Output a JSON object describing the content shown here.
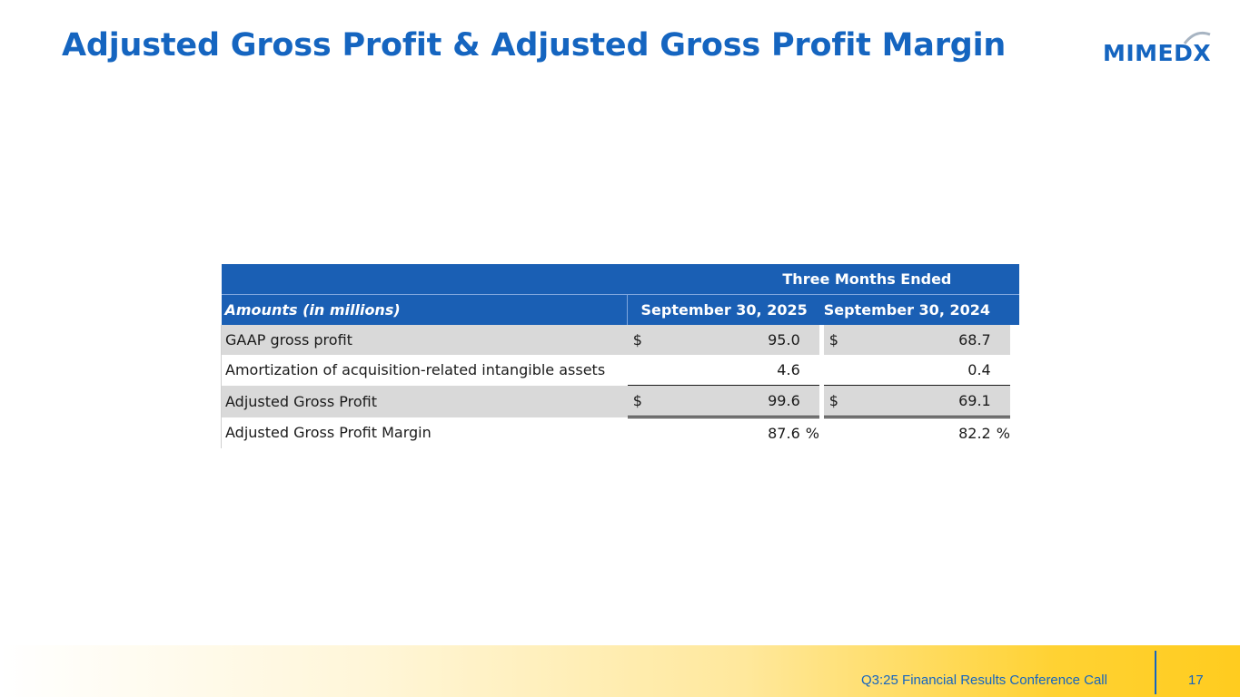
{
  "title": "Adjusted Gross Profit & Adjusted Gross Profit Margin",
  "logo": {
    "text": "MIMEDX"
  },
  "table": {
    "super_header": "Three Months Ended",
    "label_header": "Amounts (in millions)",
    "col_headers": [
      "September 30, 2025",
      "September 30, 2024"
    ],
    "rows": [
      {
        "label": "GAAP gross profit",
        "c1": "$",
        "v1": "95.0",
        "s1": "",
        "c2": "$",
        "v2": "68.7",
        "s2": ""
      },
      {
        "label": "Amortization of acquisition-related intangible assets",
        "c1": "",
        "v1": "4.6",
        "s1": "",
        "c2": "",
        "v2": "0.4",
        "s2": ""
      },
      {
        "label": "Adjusted Gross Profit",
        "c1": "$",
        "v1": "99.6",
        "s1": "",
        "c2": "$",
        "v2": "69.1",
        "s2": ""
      },
      {
        "label": "Adjusted Gross Profit Margin",
        "c1": "",
        "v1": "87.6",
        "s1": "%",
        "c2": "",
        "v2": "82.2",
        "s2": "%"
      }
    ]
  },
  "footer": {
    "text": "Q3:25 Financial Results Conference Call",
    "page": "17"
  },
  "colors": {
    "brand_blue": "#1565c0",
    "header_blue": "#1a5fb4",
    "row_gray": "#d9d9d9",
    "footer_gold": "#ffcc1f"
  }
}
